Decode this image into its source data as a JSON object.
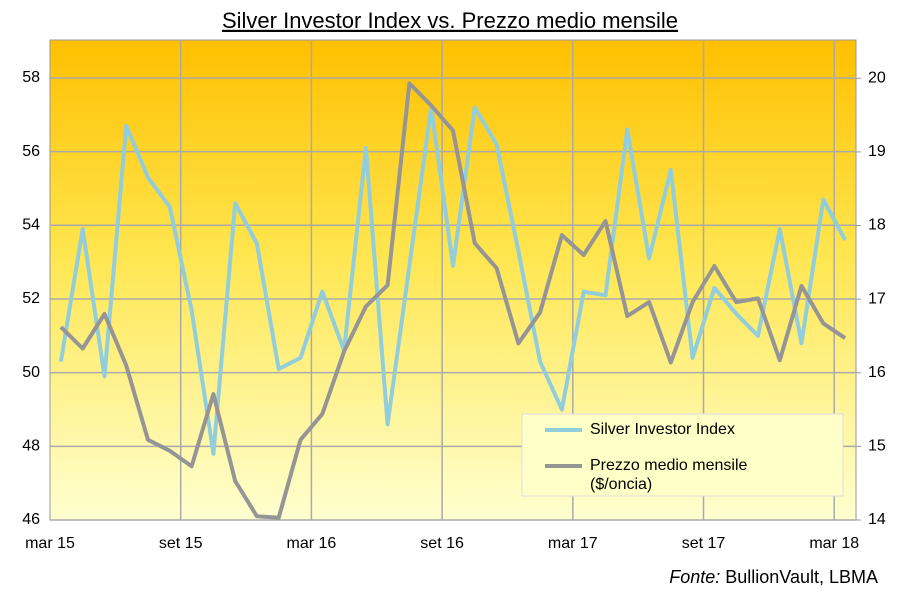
{
  "chart_data": {
    "type": "line",
    "title": "Silver Investor Index vs. Prezzo medio mensile",
    "source_prefix": "Fonte:",
    "source": "BullionVault, LBMA",
    "categories": [
      "mar 15",
      null,
      null,
      null,
      null,
      null,
      "set 15",
      null,
      null,
      null,
      null,
      null,
      "mar 16",
      null,
      null,
      null,
      null,
      null,
      "set 16",
      null,
      null,
      null,
      null,
      null,
      "mar 17",
      null,
      null,
      null,
      null,
      null,
      "set 17",
      null,
      null,
      null,
      null,
      null,
      "mar 18"
    ],
    "series": [
      {
        "name": "Silver Investor Index",
        "color": "#92cddc",
        "axis": "y",
        "values": [
          50.3,
          53.9,
          49.9,
          56.7,
          55.3,
          54.5,
          51.7,
          47.8,
          54.6,
          53.5,
          50.1,
          50.4,
          52.2,
          50.6,
          56.1,
          48.6,
          52.9,
          57.2,
          52.9,
          57.2,
          56.2,
          53.3,
          50.3,
          49.0,
          52.2,
          52.1,
          56.6,
          53.1,
          55.5,
          50.4,
          52.3,
          51.6,
          51.0,
          53.9,
          50.8,
          54.7,
          53.6
        ]
      },
      {
        "name": "Prezzo medio mensile ($/oncia)",
        "color": "#959595",
        "axis": "y2",
        "values": [
          16.62,
          16.33,
          16.8,
          16.1,
          15.09,
          14.94,
          14.73,
          15.71,
          14.53,
          14.05,
          14.03,
          15.09,
          15.44,
          16.29,
          16.9,
          17.19,
          19.93,
          19.63,
          19.29,
          17.76,
          17.42,
          16.4,
          16.82,
          17.87,
          17.6,
          18.06,
          16.77,
          16.96,
          16.14,
          16.96,
          17.45,
          16.96,
          17.01,
          16.17,
          17.18,
          16.67,
          16.47
        ]
      }
    ],
    "ylim": [
      46,
      59.03
    ],
    "yticks": [
      46,
      48,
      50,
      52,
      54,
      56,
      58
    ],
    "y2lim": [
      14,
      20.52
    ],
    "y2ticks": [
      14,
      15,
      16,
      17,
      18,
      19,
      20
    ],
    "grid": true,
    "legend": "lower right"
  }
}
